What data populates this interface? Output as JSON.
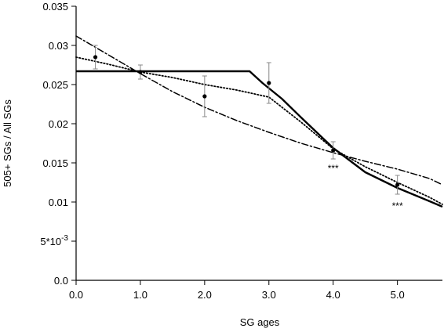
{
  "chart_data": {
    "type": "line",
    "xlabel": "SG ages",
    "ylabel": "505+ SGs / All SGs",
    "xlim": [
      0.0,
      5.7
    ],
    "ylim": [
      0.0,
      0.035
    ],
    "x_ticks": [
      {
        "value": 0.0,
        "label": "0.0"
      },
      {
        "value": 1.0,
        "label": "1.0"
      },
      {
        "value": 2.0,
        "label": "2.0"
      },
      {
        "value": 3.0,
        "label": "3.0"
      },
      {
        "value": 4.0,
        "label": "4.0"
      },
      {
        "value": 5.0,
        "label": "5.0"
      }
    ],
    "y_ticks": [
      {
        "value": 0.0,
        "label": "0.0"
      },
      {
        "value": 0.005,
        "label": "5*10",
        "sup": "-3"
      },
      {
        "value": 0.01,
        "label": "0.01"
      },
      {
        "value": 0.015,
        "label": "0.015"
      },
      {
        "value": 0.02,
        "label": "0.02"
      },
      {
        "value": 0.025,
        "label": "0.025"
      },
      {
        "value": 0.03,
        "label": "0.03"
      },
      {
        "value": 0.035,
        "label": "0.035"
      }
    ],
    "grid": false,
    "points": {
      "x": [
        0.3,
        1.0,
        2.0,
        3.0,
        4.0,
        5.0
      ],
      "y": [
        0.0285,
        0.0266,
        0.0235,
        0.0252,
        0.0166,
        0.0122
      ],
      "err": [
        0.0015,
        0.0009,
        0.0026,
        0.0026,
        0.0011,
        0.0012
      ]
    },
    "series": [
      {
        "style": "solid",
        "x": [
          0.0,
          2.7,
          2.9,
          3.2,
          3.5,
          4.0,
          4.5,
          5.0,
          5.5,
          5.7
        ],
        "y": [
          0.0267,
          0.0267,
          0.0252,
          0.0232,
          0.0208,
          0.0169,
          0.0138,
          0.0118,
          0.0101,
          0.0094
        ]
      },
      {
        "style": "dotted",
        "x": [
          0.0,
          0.5,
          1.0,
          1.5,
          2.0,
          2.5,
          3.0,
          3.5,
          4.0,
          4.5,
          5.0,
          5.5,
          5.7
        ],
        "y": [
          0.0285,
          0.0276,
          0.0266,
          0.0259,
          0.025,
          0.0243,
          0.0234,
          0.0202,
          0.0168,
          0.0145,
          0.0125,
          0.0106,
          0.0097
        ]
      },
      {
        "style": "dashdot",
        "x": [
          0.0,
          0.5,
          1.0,
          1.5,
          2.0,
          2.5,
          3.0,
          3.5,
          4.0,
          4.5,
          5.0,
          5.5,
          5.7
        ],
        "y": [
          0.0312,
          0.0288,
          0.0264,
          0.0241,
          0.0221,
          0.0204,
          0.0189,
          0.0175,
          0.0163,
          0.0152,
          0.0142,
          0.013,
          0.0122
        ]
      }
    ],
    "annotations": [
      {
        "text": "***",
        "x": 4.0,
        "y": 0.0139
      },
      {
        "text": "***",
        "x": 5.0,
        "y": 0.0091
      }
    ]
  }
}
